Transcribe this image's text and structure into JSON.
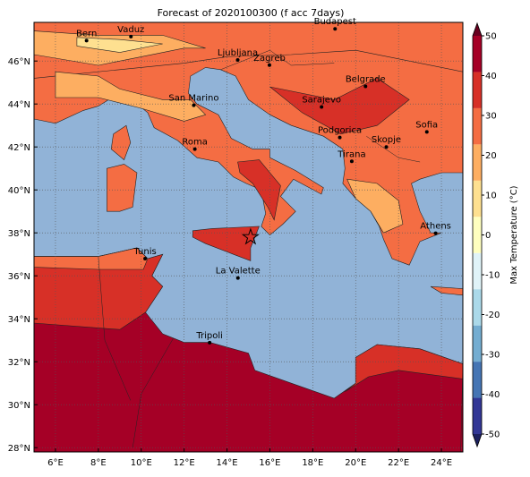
{
  "title": "Forecast of 2020100300 (f acc 7days)",
  "lonlim": [
    5,
    25
  ],
  "latlim": [
    27.8,
    47.8
  ],
  "lon_ticks": [
    {
      "value": 6,
      "label": "6°E"
    },
    {
      "value": 8,
      "label": "8°E"
    },
    {
      "value": 10,
      "label": "10°E"
    },
    {
      "value": 12,
      "label": "12°E"
    },
    {
      "value": 14,
      "label": "14°E"
    },
    {
      "value": 16,
      "label": "16°E"
    },
    {
      "value": 18,
      "label": "18°E"
    },
    {
      "value": 20,
      "label": "20°E"
    },
    {
      "value": 22,
      "label": "22°E"
    },
    {
      "value": 24,
      "label": "24°E"
    }
  ],
  "lat_ticks": [
    {
      "value": 28,
      "label": "28°N"
    },
    {
      "value": 30,
      "label": "30°N"
    },
    {
      "value": 32,
      "label": "32°N"
    },
    {
      "value": 34,
      "label": "34°N"
    },
    {
      "value": 36,
      "label": "36°N"
    },
    {
      "value": 38,
      "label": "38°N"
    },
    {
      "value": 40,
      "label": "40°N"
    },
    {
      "value": 42,
      "label": "42°N"
    },
    {
      "value": 44,
      "label": "44°N"
    },
    {
      "value": 46,
      "label": "46°N"
    }
  ],
  "cities": [
    "Bern",
    "Vaduz",
    "Budapest",
    "Ljubljana",
    "Zagreb",
    "Belgrade",
    "San Marino",
    "Sarajevo",
    "Sofia",
    "Podgorica",
    "Skopje",
    "Roma",
    "Tirana",
    "Athens",
    "Tunis",
    "La Valette",
    "Tripoli"
  ],
  "colorbar": {
    "label": "Max Temperature (°C)",
    "ticks": [
      -50,
      -40,
      -30,
      -20,
      -10,
      0,
      10,
      20,
      30,
      40,
      50
    ],
    "colors": [
      "#313695",
      "#4575b4",
      "#74add1",
      "#abd9e9",
      "#e0f3f8",
      "#ffffbf",
      "#fee090",
      "#fdae61",
      "#f46d43",
      "#d73027",
      "#a50026"
    ],
    "under_color": "#1b1f5e",
    "over_color": "#67001f"
  }
}
